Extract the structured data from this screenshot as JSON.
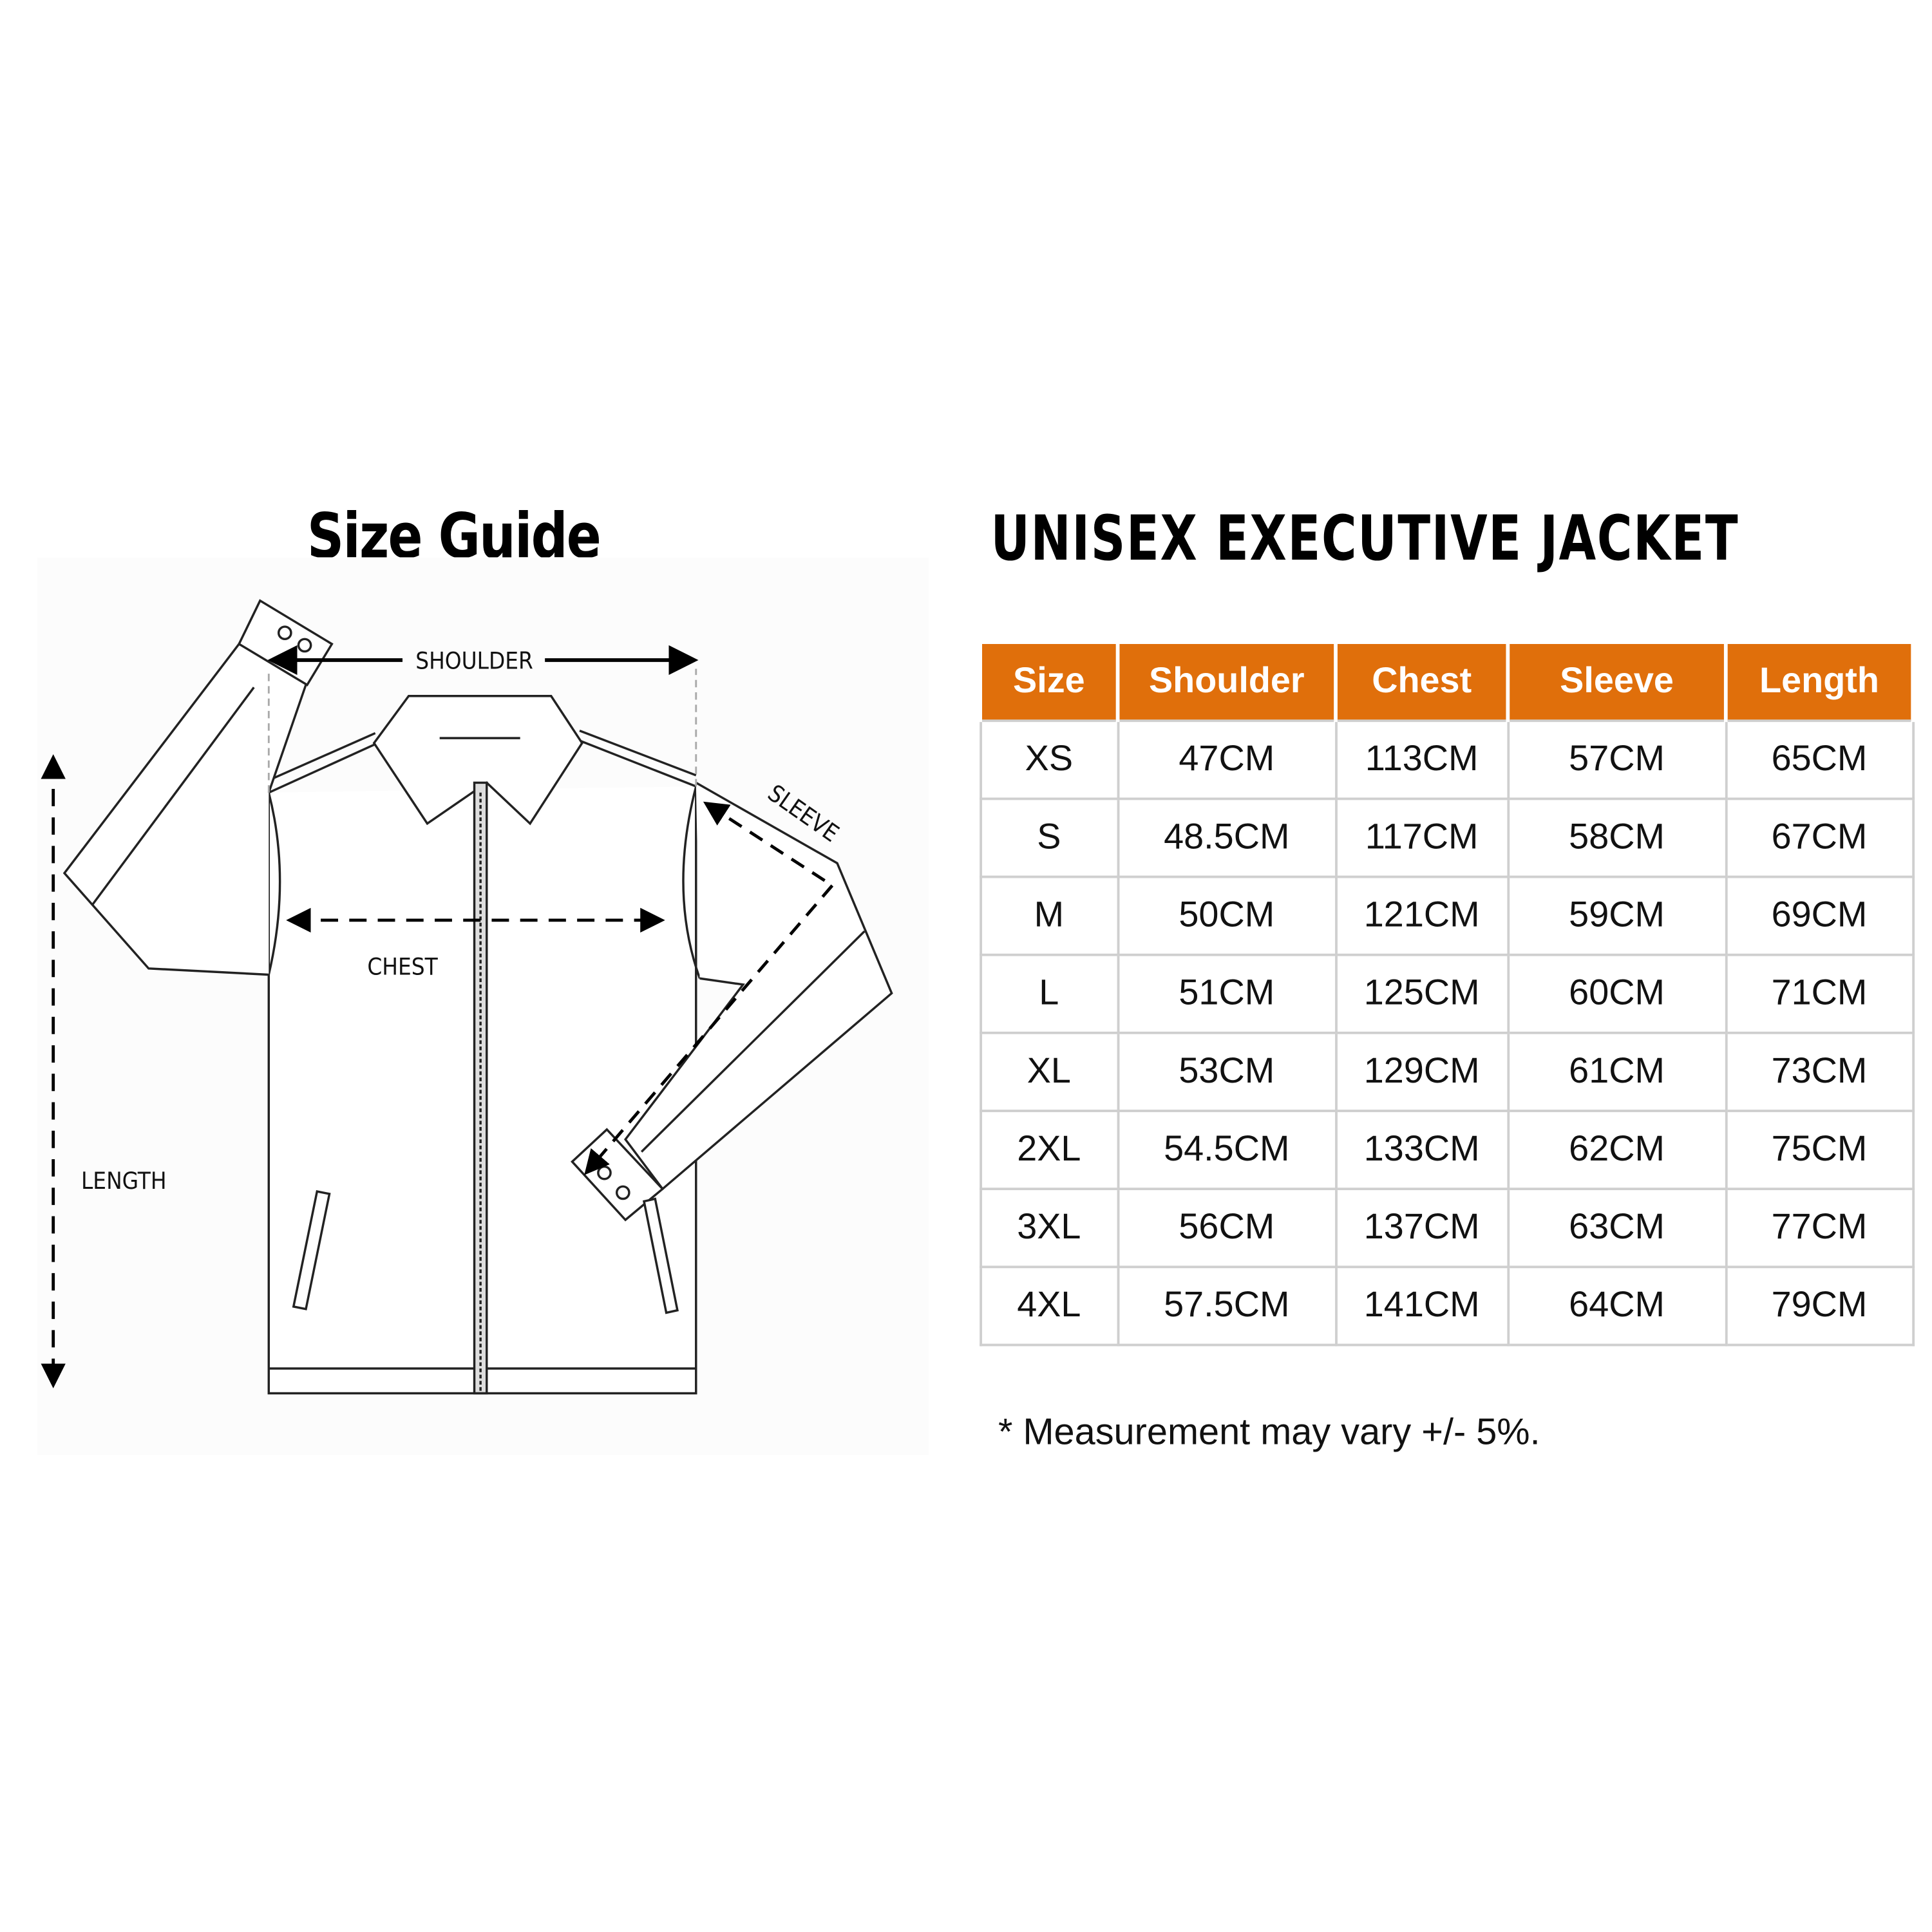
{
  "left_title": "Size Guide",
  "product_title": "UNISEX EXECUTIVE JACKET",
  "diagram": {
    "labels": {
      "shoulder": "SHOULDER",
      "chest": "CHEST",
      "sleeve": "SLEEVE",
      "length": "LENGTH"
    }
  },
  "table": {
    "header_color": "#e06f0b",
    "columns": [
      "Size",
      "Shoulder",
      "Chest",
      "Sleeve",
      "Length"
    ],
    "rows": [
      [
        "XS",
        "47CM",
        "113CM",
        "57CM",
        "65CM"
      ],
      [
        "S",
        "48.5CM",
        "117CM",
        "58CM",
        "67CM"
      ],
      [
        "M",
        "50CM",
        "121CM",
        "59CM",
        "69CM"
      ],
      [
        "L",
        "51CM",
        "125CM",
        "60CM",
        "71CM"
      ],
      [
        "XL",
        "53CM",
        "129CM",
        "61CM",
        "73CM"
      ],
      [
        "2XL",
        "54.5CM",
        "133CM",
        "62CM",
        "75CM"
      ],
      [
        "3XL",
        "56CM",
        "137CM",
        "63CM",
        "77CM"
      ],
      [
        "4XL",
        "57.5CM",
        "141CM",
        "64CM",
        "79CM"
      ]
    ]
  },
  "footnote": "* Measurement may vary +/- 5%."
}
